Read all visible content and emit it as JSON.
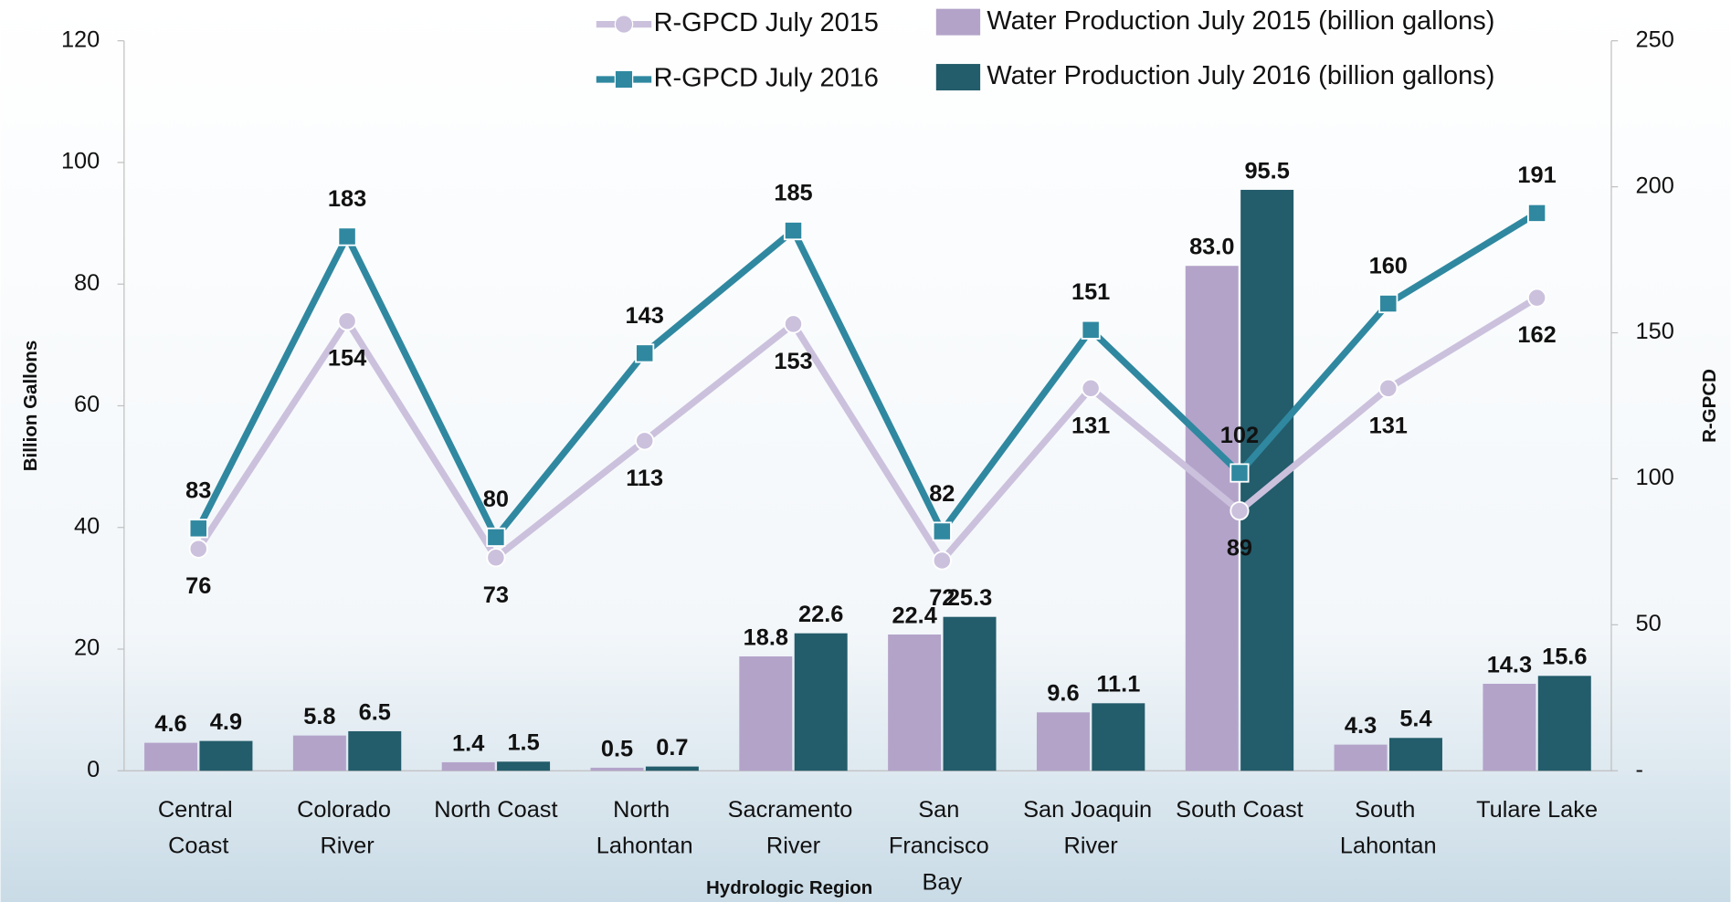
{
  "chart_data": {
    "type": "combo",
    "x_label": "Hydrologic Region",
    "y_label": "Billion Gallons",
    "y2_label": "R-GPCD",
    "categories": [
      "Central Coast",
      "Colorado River",
      "North Coast",
      "North Lahontan",
      "Sacramento River",
      "San Francisco Bay",
      "San Joaquin River",
      "South Coast",
      "South Lahontan",
      "Tulare Lake"
    ],
    "series": [
      {
        "name": "Water Production July 2015 (billion gallons)",
        "type": "bar",
        "color": "#b3a3c9",
        "values": [
          4.6,
          5.8,
          1.4,
          0.5,
          18.8,
          22.4,
          9.6,
          83.0,
          4.3,
          14.3
        ],
        "value_labels": [
          "4.6",
          "5.8",
          "1.4",
          "0.5",
          "18.8",
          "22.4",
          "9.6",
          "83.0",
          "4.3",
          "14.3"
        ]
      },
      {
        "name": "Water Production July 2016 (billion gallons)",
        "type": "bar",
        "color": "#235c6b",
        "values": [
          4.9,
          6.5,
          1.5,
          0.7,
          22.6,
          25.3,
          11.1,
          95.5,
          5.4,
          15.6
        ]
      },
      {
        "name": "R-GPCD July 2015",
        "type": "line",
        "axis": "y2",
        "color": "#cbc1dd",
        "marker": "circle",
        "values": [
          76,
          154,
          73,
          113,
          153,
          72,
          131,
          89,
          131,
          162
        ]
      },
      {
        "name": "R-GPCD July 2016",
        "type": "line",
        "axis": "y2",
        "color": "#2f88a0",
        "marker": "square",
        "values": [
          83,
          183,
          80,
          143,
          185,
          82,
          151,
          102,
          160,
          191
        ]
      }
    ],
    "ylim": [
      0,
      120
    ],
    "yticks": [
      0,
      20,
      40,
      60,
      80,
      100,
      120
    ],
    "y2lim": [
      0,
      250
    ],
    "y2ticks": [
      {
        "value": 0,
        "label": "-"
      },
      50,
      100,
      150,
      200,
      250
    ]
  }
}
